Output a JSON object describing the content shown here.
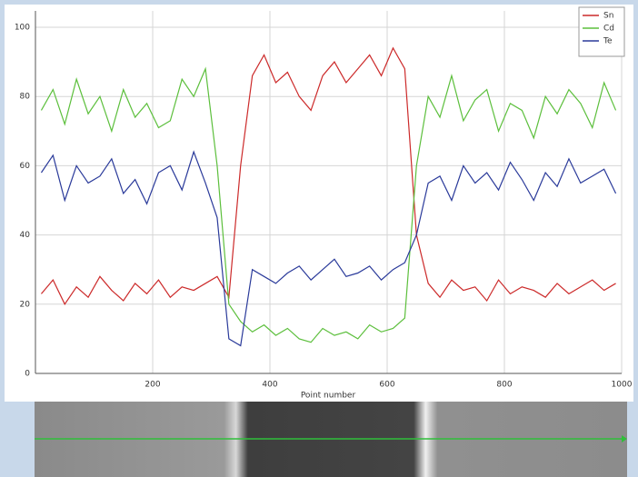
{
  "chart_data": {
    "type": "line",
    "x_label": "Point number",
    "x": [
      10,
      30,
      50,
      70,
      90,
      110,
      130,
      150,
      170,
      190,
      210,
      230,
      250,
      270,
      290,
      310,
      330,
      350,
      370,
      390,
      410,
      430,
      450,
      470,
      490,
      510,
      530,
      550,
      570,
      590,
      610,
      630,
      650,
      670,
      690,
      710,
      730,
      750,
      770,
      790,
      810,
      830,
      850,
      870,
      890,
      910,
      930,
      950,
      970,
      990
    ],
    "series": [
      {
        "name": "Sn",
        "color": "#cc2a2a",
        "values": [
          23,
          27,
          20,
          25,
          22,
          28,
          24,
          21,
          26,
          23,
          27,
          22,
          25,
          24,
          26,
          28,
          22,
          60,
          86,
          92,
          84,
          87,
          80,
          76,
          86,
          90,
          84,
          88,
          92,
          86,
          94,
          88,
          40,
          26,
          22,
          27,
          24,
          25,
          21,
          27,
          23,
          25,
          24,
          22,
          26,
          23,
          25,
          27,
          24,
          26
        ]
      },
      {
        "name": "Cd",
        "color": "#5cbf3c",
        "values": [
          76,
          82,
          72,
          85,
          75,
          80,
          70,
          82,
          74,
          78,
          71,
          73,
          85,
          80,
          88,
          60,
          20,
          15,
          12,
          14,
          11,
          13,
          10,
          9,
          13,
          11,
          12,
          10,
          14,
          12,
          13,
          16,
          60,
          80,
          74,
          86,
          73,
          79,
          82,
          70,
          78,
          76,
          68,
          80,
          75,
          82,
          78,
          71,
          84,
          76
        ]
      },
      {
        "name": "Te",
        "color": "#2a3a9a",
        "values": [
          58,
          63,
          50,
          60,
          55,
          57,
          62,
          52,
          56,
          49,
          58,
          60,
          53,
          64,
          55,
          45,
          10,
          8,
          30,
          28,
          26,
          29,
          31,
          27,
          30,
          33,
          28,
          29,
          31,
          27,
          30,
          32,
          40,
          55,
          57,
          50,
          60,
          55,
          58,
          53,
          61,
          56,
          50,
          58,
          54,
          62,
          55,
          57,
          59,
          52
        ]
      }
    ],
    "xlim": [
      0,
      1000
    ],
    "xticks": [
      200,
      400,
      600,
      800,
      1000
    ],
    "ylim": [
      0,
      100
    ],
    "yticks": [
      0,
      20,
      40,
      60,
      80,
      100
    ],
    "grid": true,
    "legend": "top-right"
  }
}
